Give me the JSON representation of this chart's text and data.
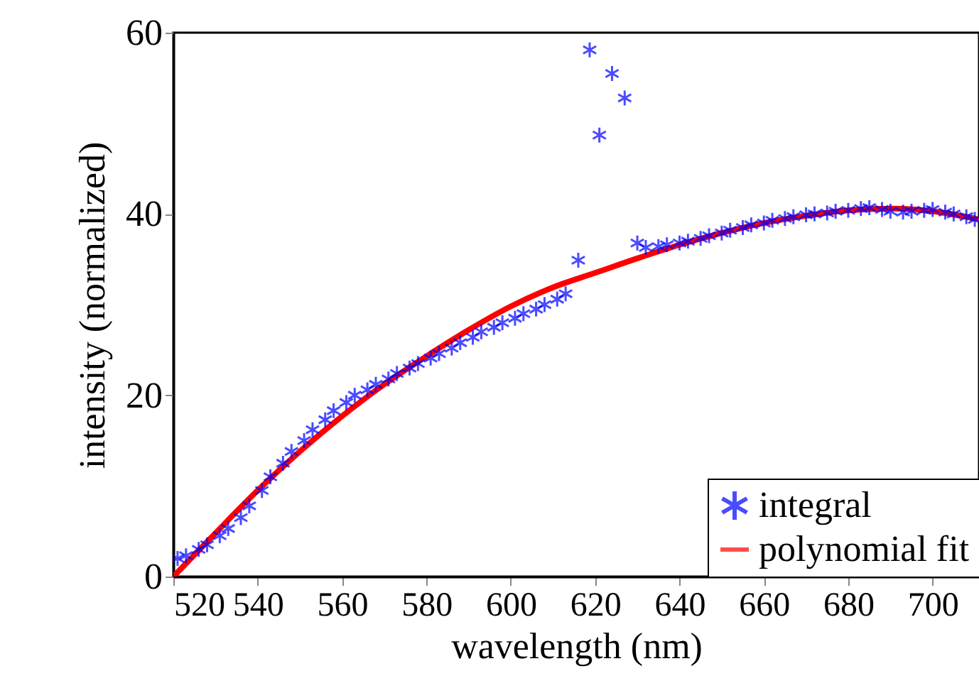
{
  "chart_data": {
    "type": "scatter",
    "xlabel": "wavelength (nm)",
    "ylabel": "intensity (normalized)",
    "xlim": [
      520,
      711
    ],
    "ylim": [
      0,
      60
    ],
    "xticks": [
      520,
      540,
      560,
      580,
      600,
      620,
      640,
      660,
      680,
      700
    ],
    "yticks": [
      0,
      20,
      40,
      60
    ],
    "legend": "bottom right",
    "grid": false,
    "series": [
      {
        "name": "integral",
        "type": "scatter",
        "marker": "cross",
        "color": "#0000ff",
        "x": [
          521,
          523,
          526,
          528,
          531,
          533,
          536,
          538,
          541,
          543,
          546,
          548,
          551,
          553,
          556,
          558,
          561,
          563,
          566,
          568,
          571,
          573,
          576,
          578,
          581,
          583,
          586,
          588,
          591,
          593,
          596,
          598,
          601,
          603,
          606,
          608,
          611,
          613,
          616,
          618.7,
          621,
          624,
          627,
          630,
          632,
          635,
          637,
          640,
          642,
          645,
          647,
          650,
          652,
          655,
          657,
          660,
          662,
          665,
          667,
          670,
          672,
          675,
          677,
          680,
          683,
          685,
          688,
          690,
          693,
          695,
          698,
          700,
          703,
          705,
          708,
          710
        ],
        "values": [
          2.0,
          2.3,
          3.0,
          3.5,
          4.5,
          5.3,
          6.5,
          7.8,
          9.5,
          11.0,
          12.5,
          13.8,
          15.0,
          16.2,
          17.3,
          18.3,
          19.2,
          20.0,
          20.6,
          21.2,
          21.8,
          22.4,
          23.0,
          23.5,
          24.1,
          24.6,
          25.2,
          25.8,
          26.4,
          27.0,
          27.5,
          28.0,
          28.5,
          29.0,
          29.5,
          30.0,
          30.6,
          31.2,
          34.9,
          58.1,
          48.7,
          55.5,
          52.8,
          36.8,
          36.3,
          36.4,
          36.6,
          36.8,
          37.0,
          37.3,
          37.6,
          37.9,
          38.2,
          38.5,
          38.8,
          39.0,
          39.3,
          39.5,
          39.7,
          39.9,
          40.0,
          40.1,
          40.3,
          40.4,
          40.6,
          40.7,
          40.5,
          40.3,
          40.2,
          40.3,
          40.4,
          40.5,
          40.2,
          40.0,
          39.7,
          39.4
        ]
      },
      {
        "name": "polynomial fit",
        "type": "line",
        "color": "#ff0000",
        "x": [
          520,
          530,
          540,
          550,
          560,
          570,
          580,
          590,
          600,
          610,
          620,
          630,
          640,
          650,
          660,
          670,
          680,
          690,
          700,
          711
        ],
        "values": [
          0,
          4.8,
          9.5,
          13.8,
          17.7,
          21.2,
          24.3,
          27.2,
          29.8,
          31.9,
          33.5,
          35.1,
          36.6,
          37.9,
          39.0,
          39.8,
          40.4,
          40.6,
          40.3,
          39.4
        ]
      }
    ]
  }
}
